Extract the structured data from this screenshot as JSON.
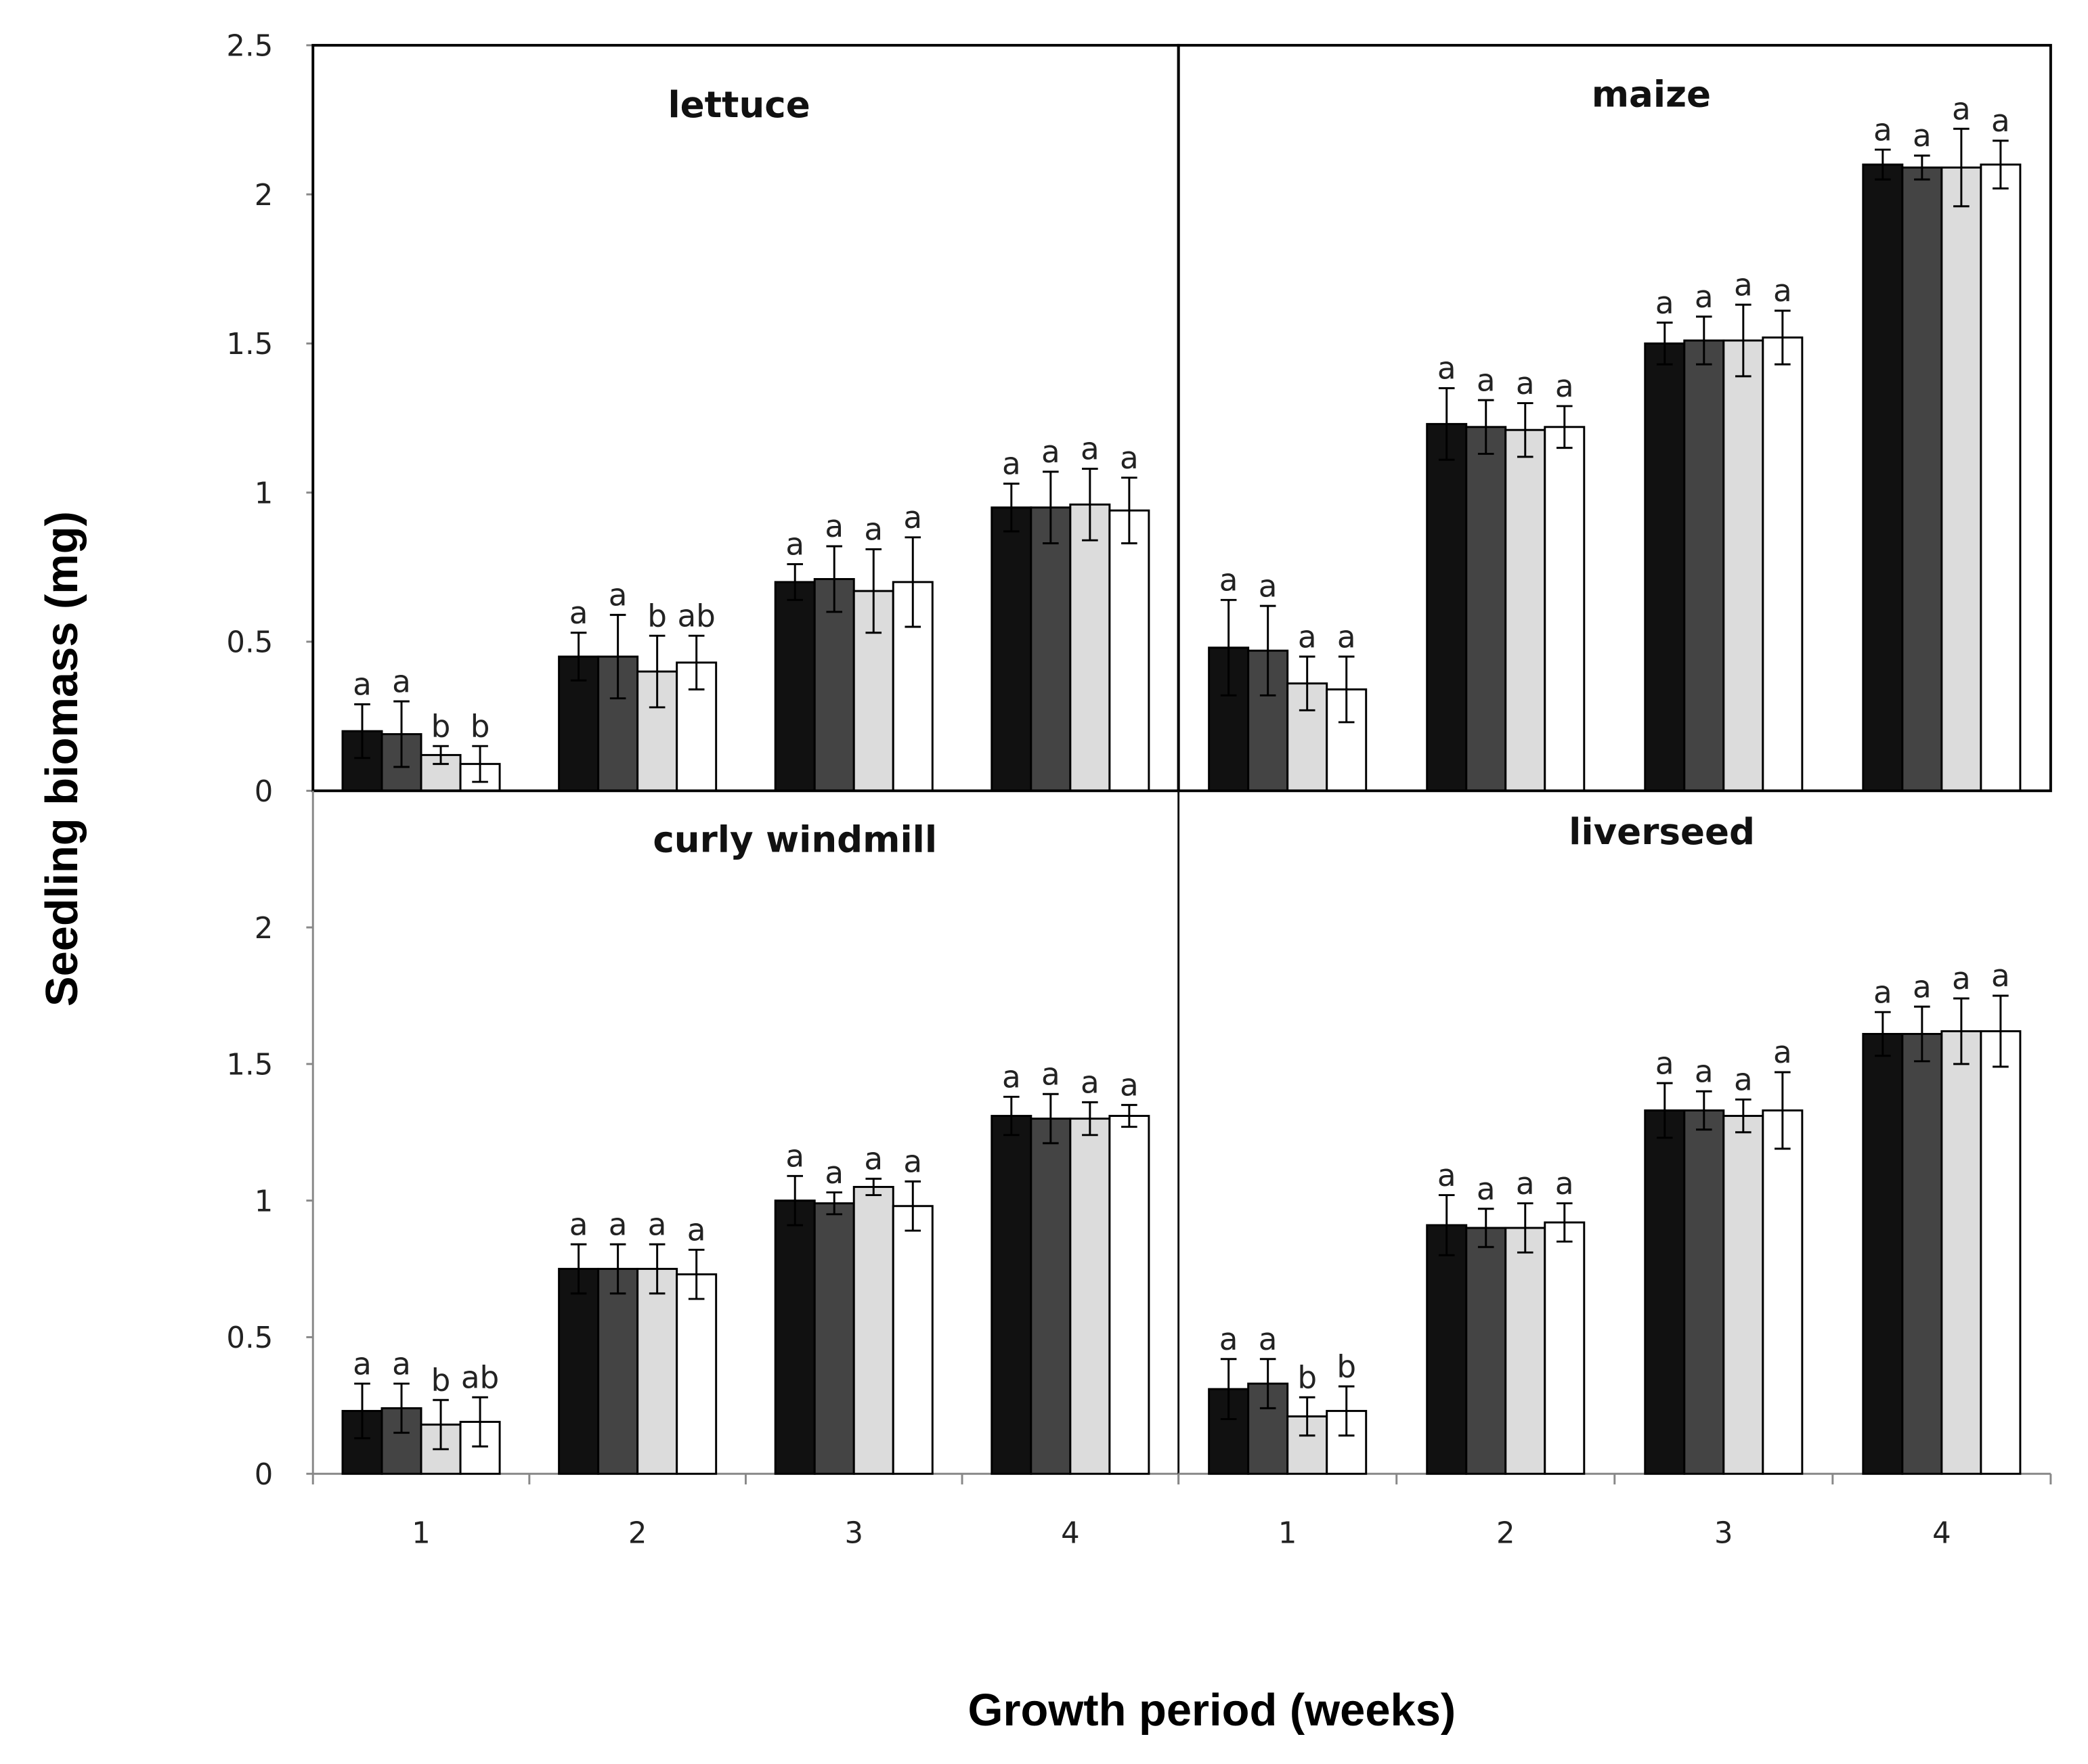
{
  "chart_data": [
    {
      "type": "bar",
      "title": "lettuce",
      "ylim": [
        0,
        2.5
      ],
      "yticks": [
        0,
        0.5,
        1,
        1.5,
        2,
        2.5
      ],
      "series": [
        {
          "color": "#111111",
          "values": [
            0.2,
            0.45,
            0.7,
            0.95
          ],
          "errors": [
            0.09,
            0.08,
            0.06,
            0.08
          ],
          "letters": [
            "a",
            "a",
            "a",
            "a"
          ]
        },
        {
          "color": "#444444",
          "values": [
            0.19,
            0.45,
            0.71,
            0.95
          ],
          "errors": [
            0.11,
            0.14,
            0.11,
            0.12
          ],
          "letters": [
            "a",
            "a",
            "a",
            "a"
          ]
        },
        {
          "color": "#dcdcdc",
          "values": [
            0.12,
            0.4,
            0.67,
            0.96
          ],
          "errors": [
            0.03,
            0.12,
            0.14,
            0.12
          ],
          "letters": [
            "b",
            "b",
            "a",
            "a"
          ]
        },
        {
          "color": "#ffffff",
          "values": [
            0.09,
            0.43,
            0.7,
            0.94
          ],
          "errors": [
            0.06,
            0.09,
            0.15,
            0.11
          ],
          "letters": [
            "b",
            "ab",
            "a",
            "a"
          ]
        }
      ]
    },
    {
      "type": "bar",
      "title": "maize",
      "ylim": [
        0,
        2.5
      ],
      "series": [
        {
          "color": "#111111",
          "values": [
            0.48,
            1.23,
            1.5,
            2.1
          ],
          "errors": [
            0.16,
            0.12,
            0.07,
            0.05
          ],
          "letters": [
            "a",
            "a",
            "a",
            "a"
          ]
        },
        {
          "color": "#444444",
          "values": [
            0.47,
            1.22,
            1.51,
            2.09
          ],
          "errors": [
            0.15,
            0.09,
            0.08,
            0.04
          ],
          "letters": [
            "a",
            "a",
            "a",
            "a"
          ]
        },
        {
          "color": "#dcdcdc",
          "values": [
            0.36,
            1.21,
            1.51,
            2.09
          ],
          "errors": [
            0.09,
            0.09,
            0.12,
            0.13
          ],
          "letters": [
            "a",
            "a",
            "a",
            "a"
          ]
        },
        {
          "color": "#ffffff",
          "values": [
            0.34,
            1.22,
            1.52,
            2.1
          ],
          "errors": [
            0.11,
            0.07,
            0.09,
            0.08
          ],
          "letters": [
            "a",
            "a",
            "a",
            "a"
          ]
        }
      ]
    },
    {
      "type": "bar",
      "title": "curly windmill",
      "categories": [
        "1",
        "2",
        "3",
        "4"
      ],
      "ylim": [
        0,
        2.5
      ],
      "yticks": [
        0,
        0.5,
        1,
        1.5,
        2
      ],
      "series": [
        {
          "color": "#111111",
          "values": [
            0.23,
            0.75,
            1.0,
            1.31
          ],
          "errors": [
            0.1,
            0.09,
            0.09,
            0.07
          ],
          "letters": [
            "a",
            "a",
            "a",
            "a"
          ]
        },
        {
          "color": "#444444",
          "values": [
            0.24,
            0.75,
            0.99,
            1.3
          ],
          "errors": [
            0.09,
            0.09,
            0.04,
            0.09
          ],
          "letters": [
            "a",
            "a",
            "a",
            "a"
          ]
        },
        {
          "color": "#dcdcdc",
          "values": [
            0.18,
            0.75,
            1.05,
            1.3
          ],
          "errors": [
            0.09,
            0.09,
            0.03,
            0.06
          ],
          "letters": [
            "b",
            "a",
            "a",
            "a"
          ]
        },
        {
          "color": "#ffffff",
          "values": [
            0.19,
            0.73,
            0.98,
            1.31
          ],
          "errors": [
            0.09,
            0.09,
            0.09,
            0.04
          ],
          "letters": [
            "ab",
            "a",
            "a",
            "a"
          ]
        }
      ]
    },
    {
      "type": "bar",
      "title": "liverseed",
      "categories": [
        "1",
        "2",
        "3",
        "4"
      ],
      "ylim": [
        0,
        2.5
      ],
      "series": [
        {
          "color": "#111111",
          "values": [
            0.31,
            0.91,
            1.33,
            1.61
          ],
          "errors": [
            0.11,
            0.11,
            0.1,
            0.08
          ],
          "letters": [
            "a",
            "a",
            "a",
            "a"
          ]
        },
        {
          "color": "#444444",
          "values": [
            0.33,
            0.9,
            1.33,
            1.61
          ],
          "errors": [
            0.09,
            0.07,
            0.07,
            0.1
          ],
          "letters": [
            "a",
            "a",
            "a",
            "a"
          ]
        },
        {
          "color": "#dcdcdc",
          "values": [
            0.21,
            0.9,
            1.31,
            1.62
          ],
          "errors": [
            0.07,
            0.09,
            0.06,
            0.12
          ],
          "letters": [
            "b",
            "a",
            "a",
            "a"
          ]
        },
        {
          "color": "#ffffff",
          "values": [
            0.23,
            0.92,
            1.33,
            1.62
          ],
          "errors": [
            0.09,
            0.07,
            0.14,
            0.13
          ],
          "letters": [
            "b",
            "a",
            "a",
            "a"
          ]
        }
      ]
    }
  ],
  "ylabel": "Seedling biomass (mg)",
  "xlabel": "Growth period (weeks)"
}
